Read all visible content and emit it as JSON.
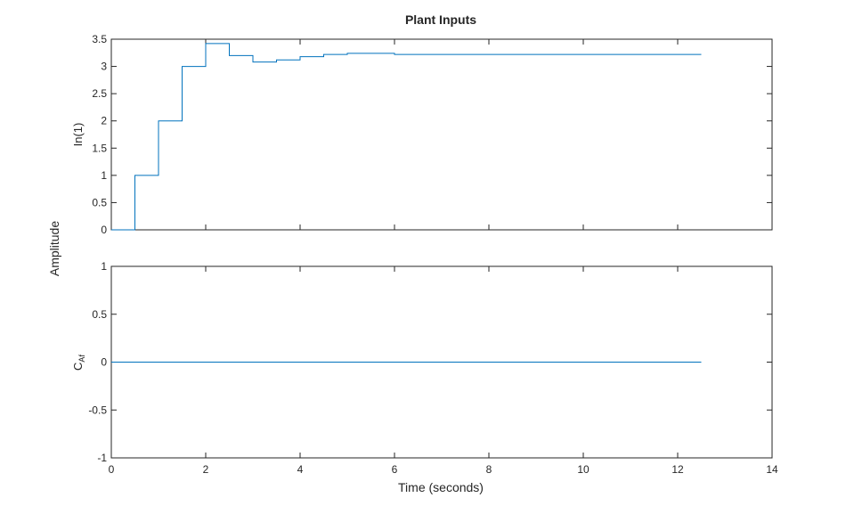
{
  "chart_data": {
    "type": "line",
    "title": "Plant Inputs",
    "xlabel": "Time (seconds)",
    "ylabel": "Amplitude",
    "xlim": [
      0,
      14
    ],
    "x_ticks": [
      "0",
      "2",
      "4",
      "6",
      "8",
      "10",
      "12",
      "14"
    ],
    "line_color": "#0072BD",
    "subplots": [
      {
        "channel_label": "In(1)",
        "channel_main": "",
        "channel_sub": "",
        "ylim": [
          0,
          3.5
        ],
        "y_ticks": [
          "0",
          "0.5",
          "1",
          "1.5",
          "2",
          "2.5",
          "3",
          "3.5"
        ],
        "series": [
          {
            "step": true,
            "x": [
              0,
              0.5,
              1.0,
              1.5,
              2.0,
              2.5,
              3.0,
              3.5,
              4.0,
              4.5,
              5.0,
              5.5,
              6.0,
              6.5,
              7.0,
              7.5,
              8.0,
              8.5,
              9.0,
              9.5,
              10.0,
              10.5,
              11.0,
              11.5,
              12.0,
              12.5
            ],
            "y": [
              0,
              1.0,
              2.0,
              3.0,
              3.42,
              3.2,
              3.08,
              3.12,
              3.18,
              3.22,
              3.24,
              3.24,
              3.22,
              3.22,
              3.22,
              3.22,
              3.22,
              3.22,
              3.22,
              3.22,
              3.22,
              3.22,
              3.22,
              3.22,
              3.22,
              3.22
            ]
          }
        ]
      },
      {
        "channel_label": "",
        "channel_main": "C",
        "channel_sub": "Af",
        "ylim": [
          -1,
          1
        ],
        "y_ticks": [
          "-1",
          "-0.5",
          "0",
          "0.5",
          "1"
        ],
        "series": [
          {
            "step": true,
            "x": [
              0,
              12.5
            ],
            "y": [
              0,
              0
            ]
          }
        ]
      }
    ]
  }
}
